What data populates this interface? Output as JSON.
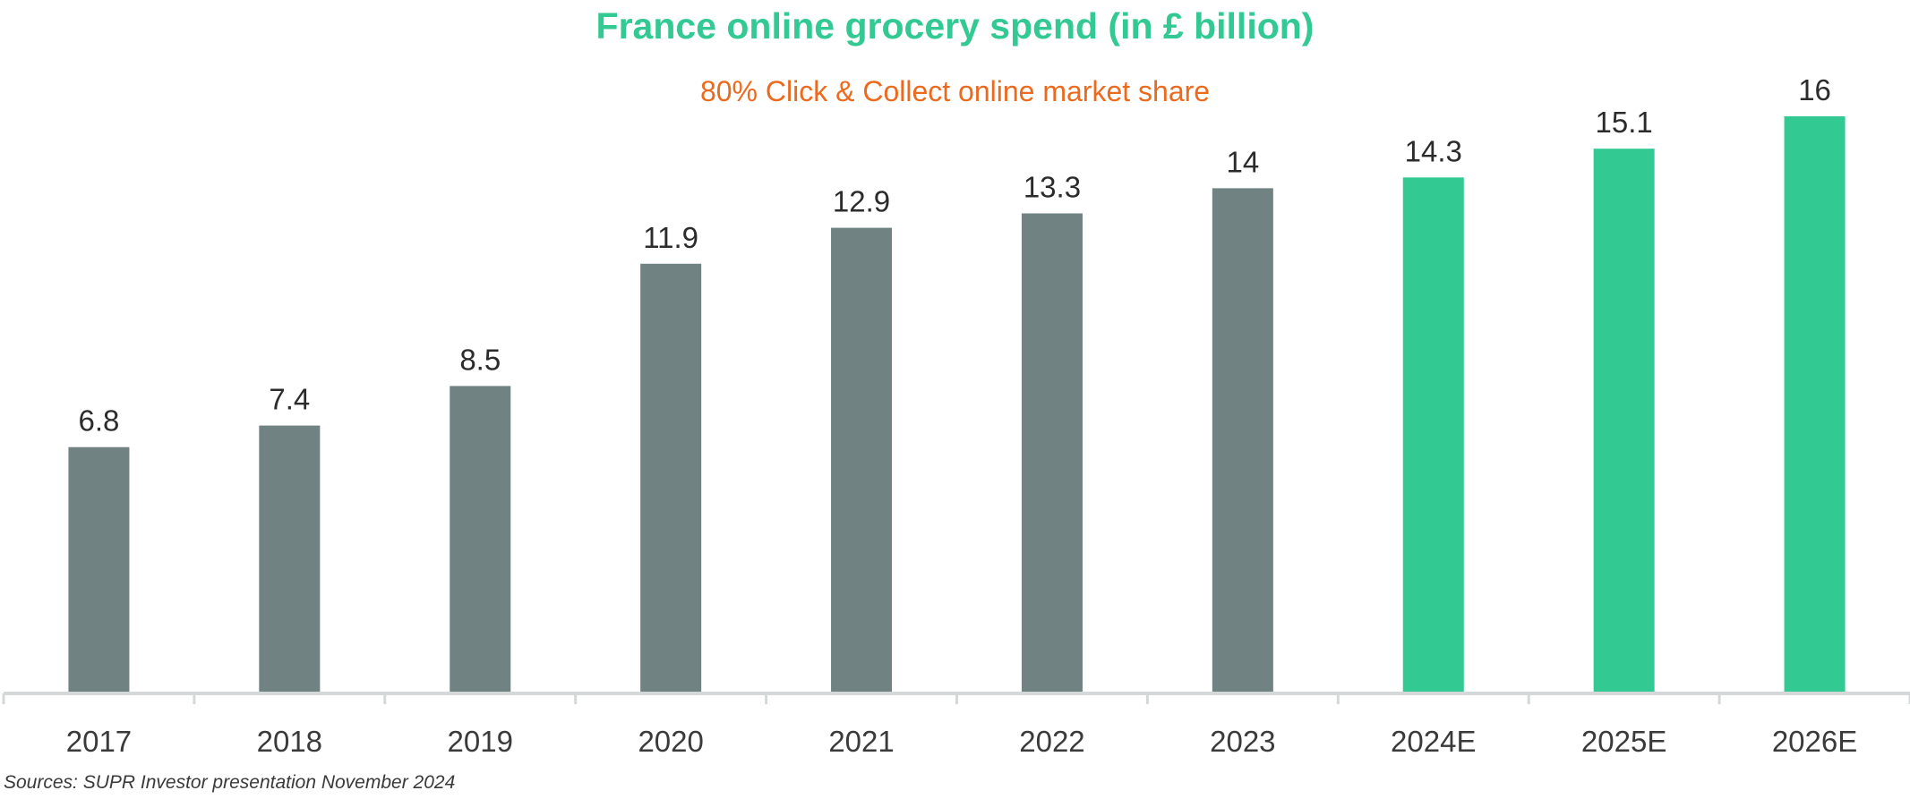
{
  "chart_data": {
    "type": "bar",
    "title": "France online grocery spend (in £ billion)",
    "subtitle": "80% Click & Collect online market share",
    "categories": [
      "2017",
      "2018",
      "2019",
      "2020",
      "2021",
      "2022",
      "2023",
      "2024E",
      "2025E",
      "2026E"
    ],
    "values": [
      6.8,
      7.4,
      8.5,
      11.9,
      12.9,
      13.3,
      14,
      14.3,
      15.1,
      16
    ],
    "value_labels": [
      "6.8",
      "7.4",
      "8.5",
      "11.9",
      "12.9",
      "13.3",
      "14",
      "14.3",
      "15.1",
      "16"
    ],
    "forecast": [
      false,
      false,
      false,
      false,
      false,
      false,
      false,
      true,
      true,
      true
    ],
    "ylim": [
      0,
      16
    ],
    "grid": false,
    "legend": "none",
    "colors": {
      "actual": "#718283",
      "forecast": "#32c993",
      "title": "#32c993",
      "subtitle": "#ec6a1e",
      "axis": "#d4d8d8"
    }
  },
  "source": "Sources: SUPR Investor presentation November 2024"
}
